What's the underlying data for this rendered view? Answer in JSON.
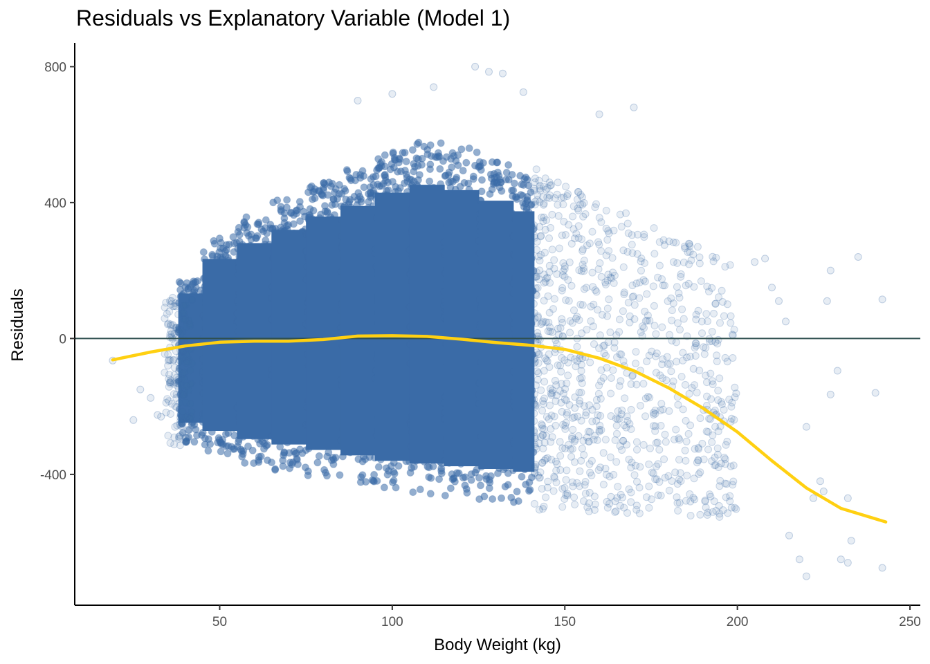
{
  "chart_data": {
    "type": "scatter",
    "title": "Residuals vs Explanatory Variable (Model 1)",
    "xlabel": "Body Weight (kg)",
    "ylabel": "Residuals",
    "xlim": [
      8,
      253
    ],
    "ylim": [
      -785,
      870
    ],
    "x_ticks": [
      50,
      100,
      150,
      200,
      250
    ],
    "x_tick_labels": [
      "50",
      "100",
      "150",
      "200",
      "250"
    ],
    "y_ticks": [
      -400,
      0,
      400,
      800
    ],
    "y_tick_labels": [
      "-400",
      "0",
      "400",
      "800"
    ],
    "grid": false,
    "point_color": "#3A6BA7",
    "point_alpha": 0.12,
    "reference_line": {
      "y": 0,
      "color": "#2F4F4F"
    },
    "smooth_line": {
      "color": "#FFD011",
      "points": [
        [
          19,
          -63
        ],
        [
          30,
          -40
        ],
        [
          40,
          -22
        ],
        [
          50,
          -11
        ],
        [
          60,
          -8
        ],
        [
          70,
          -8
        ],
        [
          80,
          -3
        ],
        [
          90,
          7
        ],
        [
          100,
          8
        ],
        [
          110,
          6
        ],
        [
          120,
          -2
        ],
        [
          130,
          -12
        ],
        [
          140,
          -20
        ],
        [
          150,
          -32
        ],
        [
          160,
          -58
        ],
        [
          170,
          -95
        ],
        [
          180,
          -145
        ],
        [
          190,
          -205
        ],
        [
          200,
          -275
        ],
        [
          210,
          -360
        ],
        [
          220,
          -440
        ],
        [
          230,
          -500
        ],
        [
          243,
          -540
        ]
      ]
    },
    "density_bands": [
      [
        38,
        45,
        170,
        -310
      ],
      [
        45,
        55,
        300,
        -340
      ],
      [
        55,
        65,
        360,
        -370
      ],
      [
        65,
        75,
        410,
        -390
      ],
      [
        75,
        85,
        460,
        -410
      ],
      [
        85,
        95,
        500,
        -430
      ],
      [
        95,
        105,
        550,
        -450
      ],
      [
        105,
        115,
        580,
        -460
      ],
      [
        115,
        125,
        560,
        -470
      ],
      [
        125,
        135,
        520,
        -480
      ],
      [
        135,
        141,
        480,
        -490
      ]
    ],
    "sparse_cloud": {
      "x_range": [
        141,
        200
      ],
      "y_center": [
        0,
        -40
      ],
      "spread": [
        560,
        420
      ]
    },
    "outliers": [
      [
        19,
        -65
      ],
      [
        25,
        -240
      ],
      [
        27,
        -150
      ],
      [
        30,
        -175
      ],
      [
        32,
        -225
      ],
      [
        33,
        -230
      ],
      [
        35,
        -80
      ],
      [
        36,
        110
      ],
      [
        205,
        225
      ],
      [
        208,
        235
      ],
      [
        210,
        150
      ],
      [
        212,
        110
      ],
      [
        214,
        50
      ],
      [
        215,
        -580
      ],
      [
        218,
        -650
      ],
      [
        220,
        -260
      ],
      [
        220,
        -700
      ],
      [
        222,
        -470
      ],
      [
        224,
        -420
      ],
      [
        225,
        -450
      ],
      [
        226,
        110
      ],
      [
        227,
        200
      ],
      [
        227,
        -165
      ],
      [
        229,
        -95
      ],
      [
        230,
        -650
      ],
      [
        232,
        -470
      ],
      [
        232,
        -660
      ],
      [
        233,
        -595
      ],
      [
        235,
        240
      ],
      [
        240,
        -160
      ],
      [
        242,
        115
      ],
      [
        242,
        -675
      ],
      [
        124,
        800
      ],
      [
        128,
        785
      ],
      [
        132,
        780
      ],
      [
        112,
        740
      ],
      [
        100,
        720
      ],
      [
        90,
        700
      ],
      [
        170,
        680
      ],
      [
        138,
        725
      ],
      [
        160,
        660
      ]
    ]
  }
}
